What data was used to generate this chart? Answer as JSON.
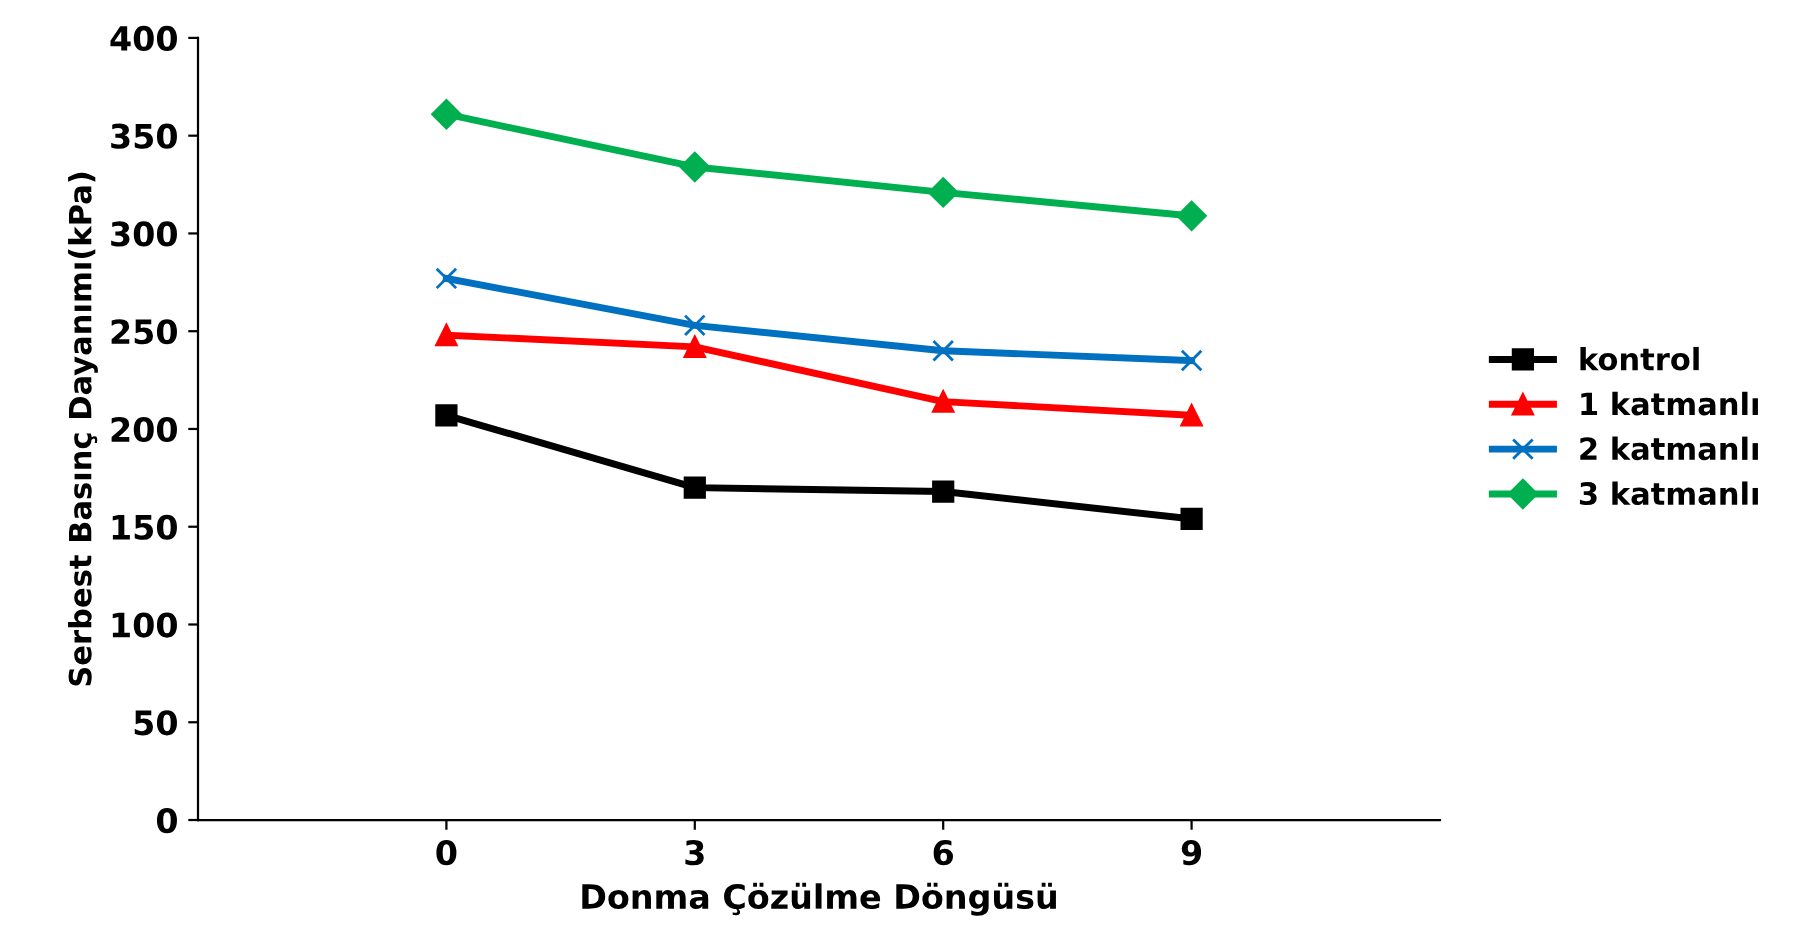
{
  "chart_data": {
    "type": "line",
    "xlabel": "Donma Çözülme Döngüsü",
    "ylabel": "Serbest Basınç Dayanımı(kPa)",
    "categories": [
      "0",
      "3",
      "6",
      "9"
    ],
    "series": [
      {
        "name": "kontrol",
        "color": "#000000",
        "marker": "square",
        "values": [
          207,
          170,
          168,
          154
        ]
      },
      {
        "name": "1 katmanlı",
        "color": "#ff0000",
        "marker": "triangle",
        "values": [
          248,
          242,
          214,
          207
        ]
      },
      {
        "name": "2 katmanlı",
        "color": "#0070c0",
        "marker": "cross",
        "values": [
          277,
          253,
          240,
          235
        ]
      },
      {
        "name": "3 katmanlı",
        "color": "#00b050",
        "marker": "diamond",
        "values": [
          361,
          334,
          321,
          309
        ]
      }
    ],
    "ylim": [
      0,
      400
    ],
    "yticks": [
      0,
      50,
      100,
      150,
      200,
      250,
      300,
      350,
      400
    ],
    "grid": false,
    "legend": "right",
    "line_style": "solid"
  }
}
